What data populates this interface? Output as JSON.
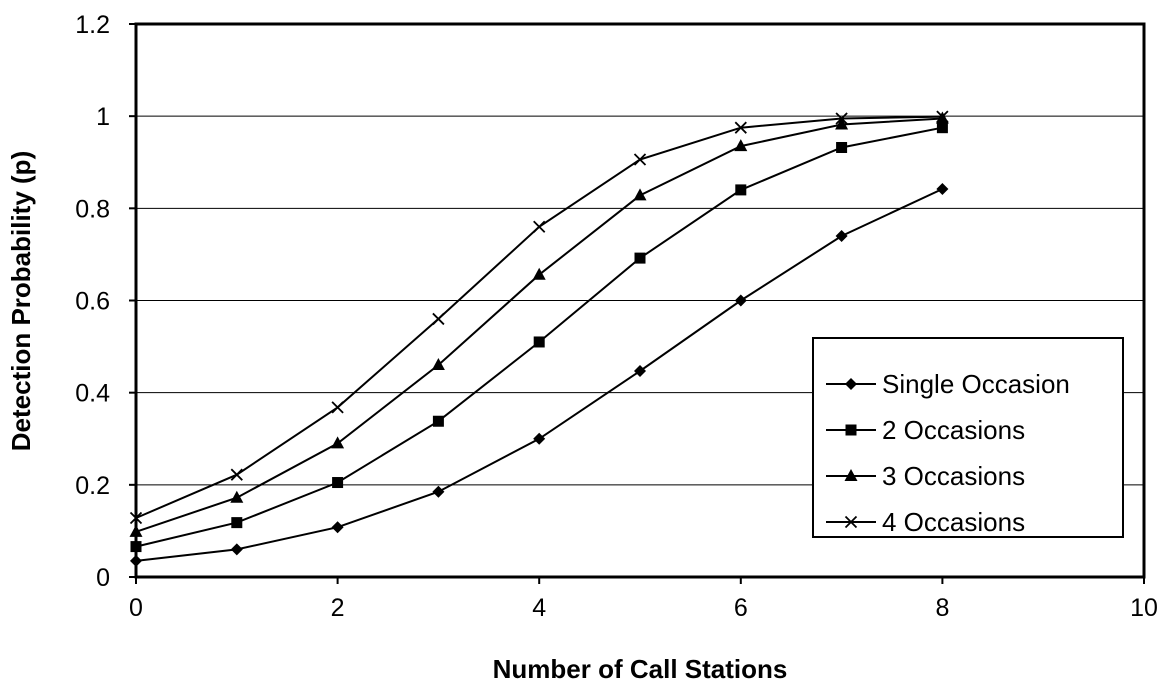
{
  "chart_data": {
    "type": "line",
    "title": "",
    "xlabel": "Number of Call Stations",
    "ylabel": "Detection Probability (p)",
    "xlim": [
      0,
      10
    ],
    "ylim": [
      0,
      1.2
    ],
    "x_ticks": [
      "0",
      "2",
      "4",
      "6",
      "8",
      "10"
    ],
    "y_ticks": [
      "0",
      "0.2",
      "0.4",
      "0.6",
      "0.8",
      "1",
      "1.2"
    ],
    "x": [
      0,
      1,
      2,
      3,
      4,
      5,
      6,
      7,
      8
    ],
    "grid": "horizontal major gridlines",
    "legend_position": "right",
    "series": [
      {
        "name": "Single Occasion",
        "marker": "diamond",
        "values": [
          0.035,
          0.06,
          0.108,
          0.185,
          0.3,
          0.447,
          0.6,
          0.74,
          0.842
        ]
      },
      {
        "name": "2 Occasions",
        "marker": "square",
        "values": [
          0.066,
          0.118,
          0.205,
          0.338,
          0.51,
          0.692,
          0.84,
          0.932,
          0.975
        ]
      },
      {
        "name": "3 Occasions",
        "marker": "triangle",
        "values": [
          0.098,
          0.172,
          0.29,
          0.46,
          0.656,
          0.828,
          0.935,
          0.982,
          0.995
        ]
      },
      {
        "name": "4 Occasions",
        "marker": "x",
        "values": [
          0.128,
          0.222,
          0.368,
          0.56,
          0.76,
          0.906,
          0.975,
          0.995,
          0.999
        ]
      }
    ]
  }
}
